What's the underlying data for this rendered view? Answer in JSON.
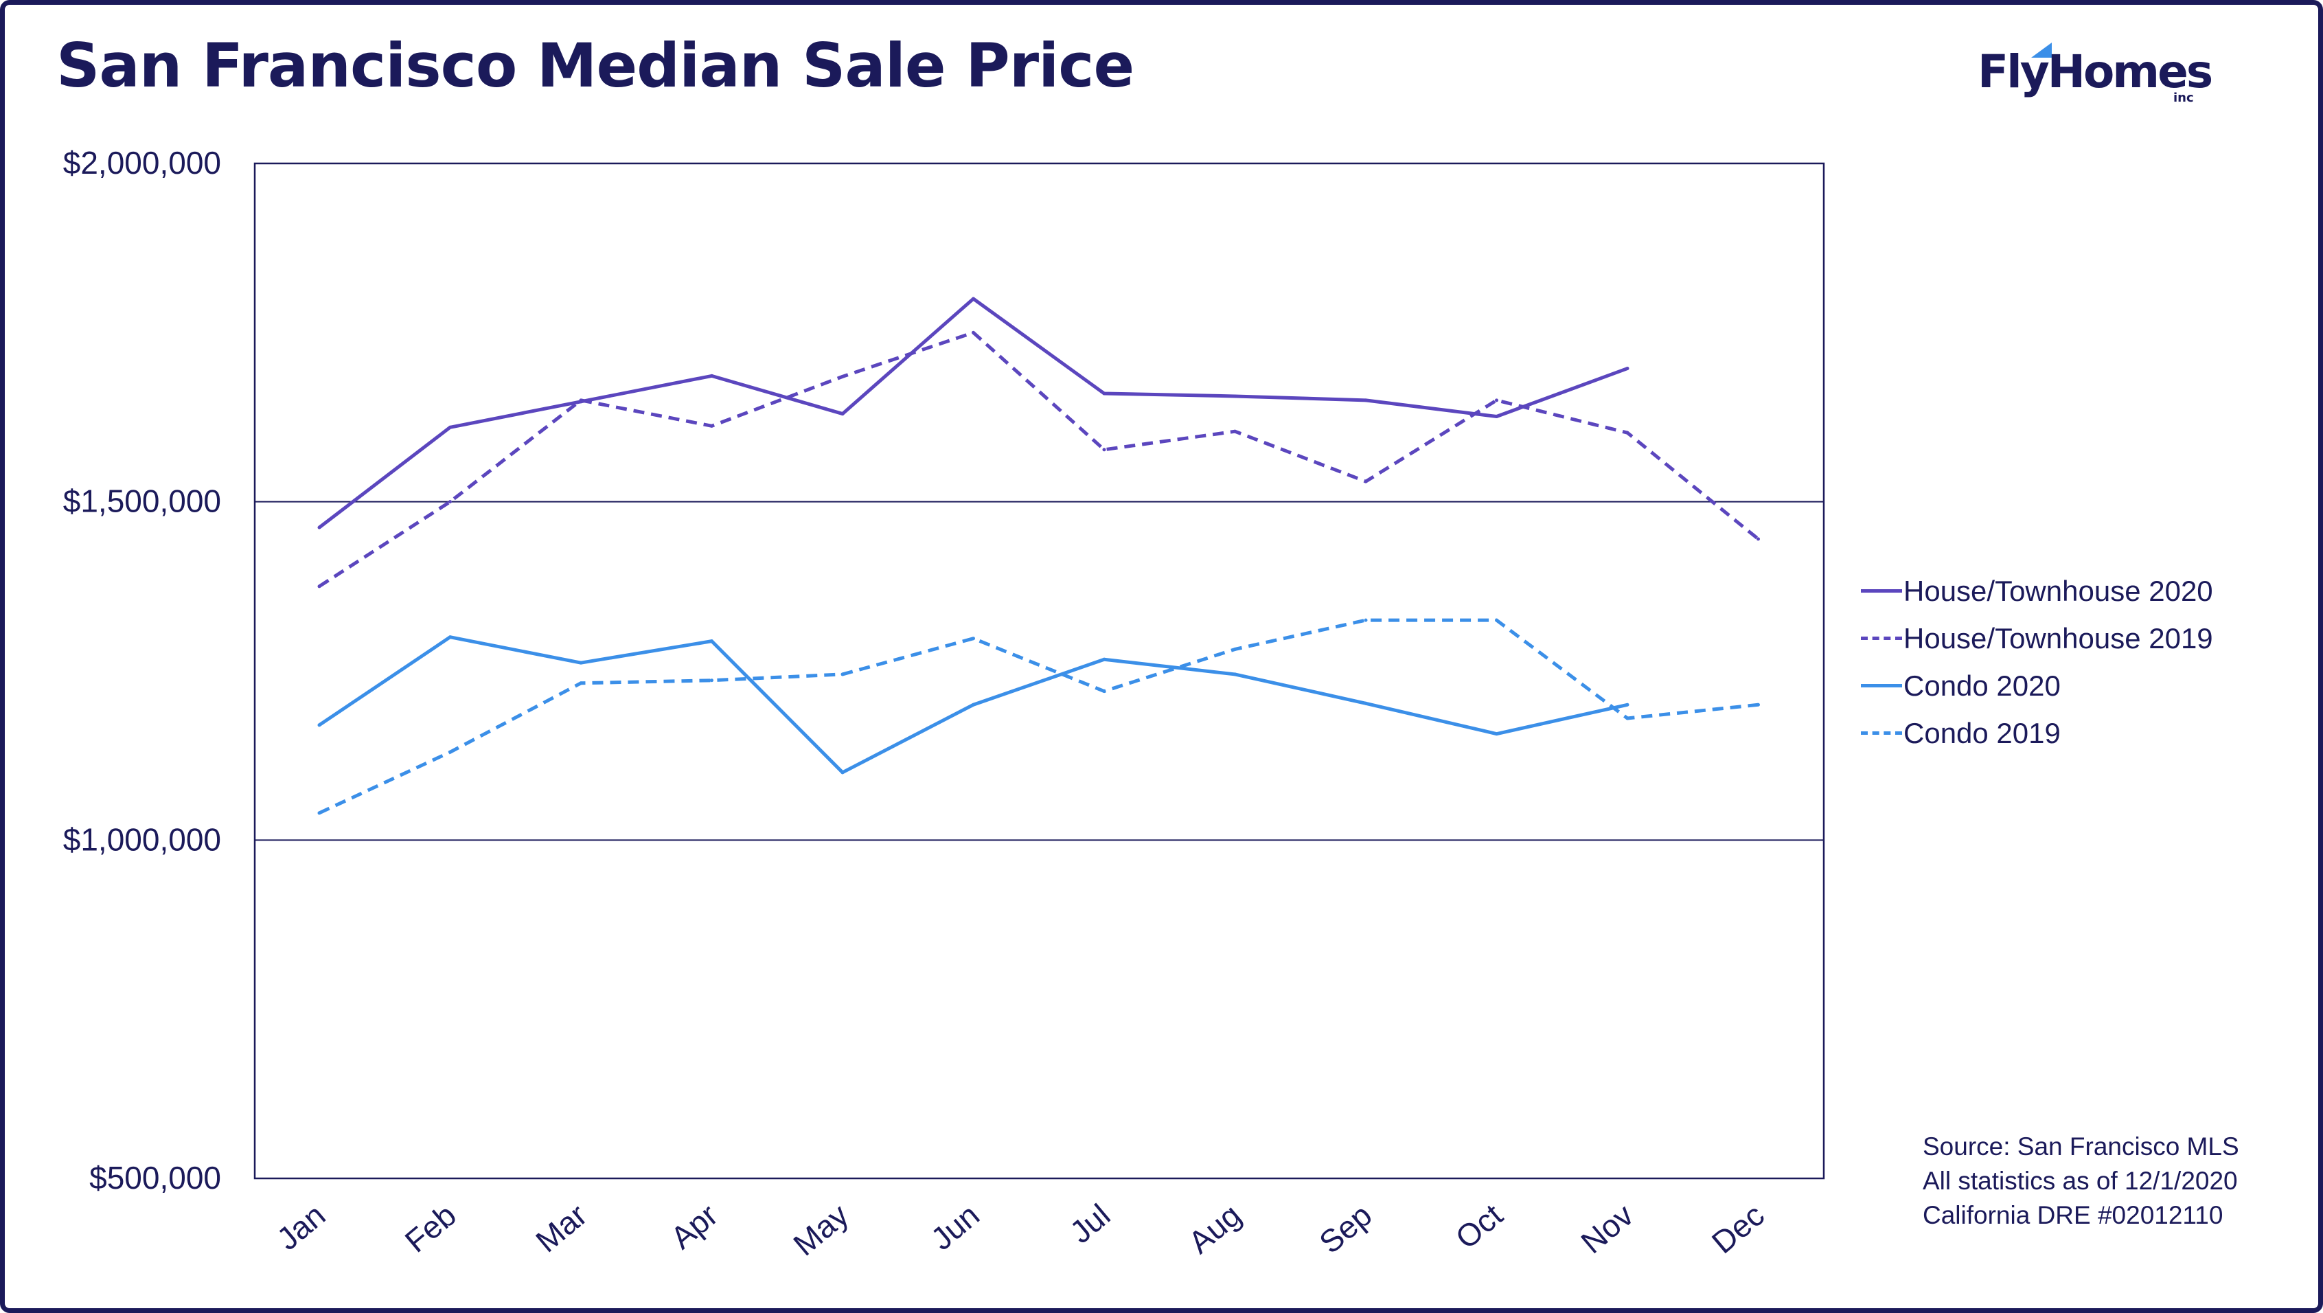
{
  "title": "San Francisco Median Sale Price",
  "logo": {
    "word": "FlyHomes",
    "suffix": "inc",
    "flag_color": "#3b8fe8"
  },
  "notes": [
    "Source: San Francisco MLS",
    "All statistics as of 12/1/2020",
    "California DRE #02012110"
  ],
  "colors": {
    "frame": "#1b1a5a",
    "text": "#1b1a5a",
    "purple": "#5b46be",
    "blue": "#3b8fe8",
    "grid": "#1b1a5a"
  },
  "chart_data": {
    "type": "line",
    "title": "San Francisco Median Sale Price",
    "xlabel": "",
    "ylabel": "",
    "categories": [
      "Jan",
      "Feb",
      "Mar",
      "Apr",
      "May",
      "Jun",
      "Jul",
      "Aug",
      "Sep",
      "Oct",
      "Nov",
      "Dec"
    ],
    "ylim": [
      500000,
      2000000
    ],
    "yticks": [
      500000,
      1000000,
      1500000,
      2000000
    ],
    "ytick_labels": [
      "$500,000",
      "$1,000,000",
      "$1,500,000",
      "$2,000,000"
    ],
    "grid": "horizontal at $1,000,000 and $1,500,000",
    "legend_position": "right",
    "series": [
      {
        "name": "House/Townhouse 2020",
        "color": "#5b46be",
        "style": "solid",
        "values": [
          1462000,
          1610000,
          1648000,
          1686000,
          1630000,
          1800000,
          1660000,
          1656000,
          1650000,
          1626000,
          1697000,
          null
        ]
      },
      {
        "name": "House/Townhouse 2019",
        "color": "#5b46be",
        "style": "dashed",
        "values": [
          1375000,
          1500000,
          1650000,
          1612000,
          1685000,
          1750000,
          1577000,
          1604000,
          1530000,
          1650000,
          1602000,
          1445000
        ]
      },
      {
        "name": "Condo 2020",
        "color": "#3b8fe8",
        "style": "solid",
        "values": [
          1170000,
          1300000,
          1262000,
          1294000,
          1100000,
          1200000,
          1267000,
          1245000,
          1202000,
          1157000,
          1200000,
          null
        ]
      },
      {
        "name": "Condo 2019",
        "color": "#3b8fe8",
        "style": "dashed",
        "values": [
          1040000,
          1130000,
          1232000,
          1236000,
          1245000,
          1298000,
          1220000,
          1282000,
          1325000,
          1325000,
          1180000,
          1200000
        ]
      }
    ]
  }
}
